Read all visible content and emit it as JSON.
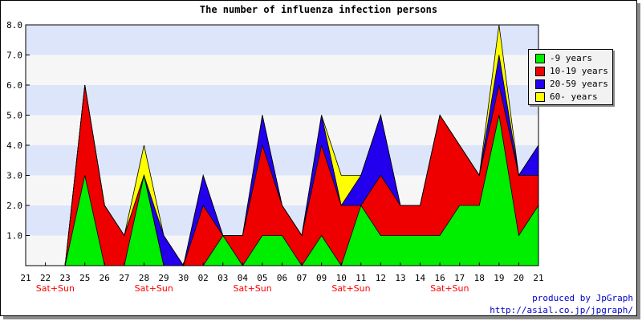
{
  "chart_data": {
    "type": "area",
    "stacked": true,
    "title": "The number of influenza infection persons",
    "x_categories": [
      "21",
      "22",
      "23",
      "25",
      "26",
      "27",
      "28",
      "29",
      "30",
      "02",
      "03",
      "04",
      "05",
      "06",
      "07",
      "09",
      "10",
      "11",
      "12",
      "13",
      "14",
      "16",
      "17",
      "18",
      "19",
      "20",
      "21"
    ],
    "weekend_labels": [
      {
        "after_index": 1,
        "text": "Sat+Sun"
      },
      {
        "after_index": 6,
        "text": "Sat+Sun"
      },
      {
        "after_index": 11,
        "text": "Sat+Sun"
      },
      {
        "after_index": 16,
        "text": "Sat+Sun"
      },
      {
        "after_index": 21,
        "text": "Sat+Sun"
      }
    ],
    "series": [
      {
        "name": "-9 years",
        "color": "#00ee00",
        "values": [
          0,
          0,
          0,
          3,
          0,
          0,
          3,
          0,
          0,
          0,
          1,
          0,
          1,
          1,
          0,
          1,
          0,
          2,
          1,
          1,
          1,
          1,
          2,
          2,
          5,
          1,
          2
        ]
      },
      {
        "name": "10-19 years",
        "color": "#ee0000",
        "values": [
          0,
          0,
          0,
          3,
          2,
          1,
          0,
          0,
          0,
          2,
          0,
          1,
          3,
          1,
          1,
          3,
          2,
          0,
          2,
          1,
          1,
          4,
          2,
          1,
          1,
          2,
          1
        ]
      },
      {
        "name": "20-59 years",
        "color": "#2200ee",
        "values": [
          0,
          0,
          0,
          0,
          0,
          0,
          0,
          1,
          0,
          1,
          0,
          0,
          1,
          0,
          0,
          1,
          0,
          1,
          2,
          0,
          0,
          0,
          0,
          0,
          1,
          0,
          1
        ]
      },
      {
        "name": "60- years",
        "color": "#ffff00",
        "values": [
          0,
          0,
          0,
          0,
          0,
          0,
          1,
          0,
          0,
          0,
          0,
          0,
          0,
          0,
          0,
          0,
          1,
          0,
          0,
          0,
          0,
          0,
          0,
          0,
          1,
          0,
          0
        ]
      }
    ],
    "y_ticks": [
      "1.0",
      "2.0",
      "3.0",
      "4.0",
      "5.0",
      "6.0",
      "7.0",
      "8.0"
    ],
    "ylim": [
      0,
      8
    ],
    "grid": "horizontal alternating bands",
    "band_colors": [
      "#f6f6f6",
      "#dce5fa"
    ],
    "legend_position": "top-right"
  },
  "legend": {
    "items": [
      {
        "label": "-9 years",
        "color": "#00ee00"
      },
      {
        "label": "10-19 years",
        "color": "#ee0000"
      },
      {
        "label": "20-59 years",
        "color": "#2200ee"
      },
      {
        "label": "60- years",
        "color": "#ffff00"
      }
    ]
  },
  "footer": {
    "credit_line1": "produced by JpGraph",
    "credit_line2": "http://asial.co.jp/jpgraph/"
  }
}
